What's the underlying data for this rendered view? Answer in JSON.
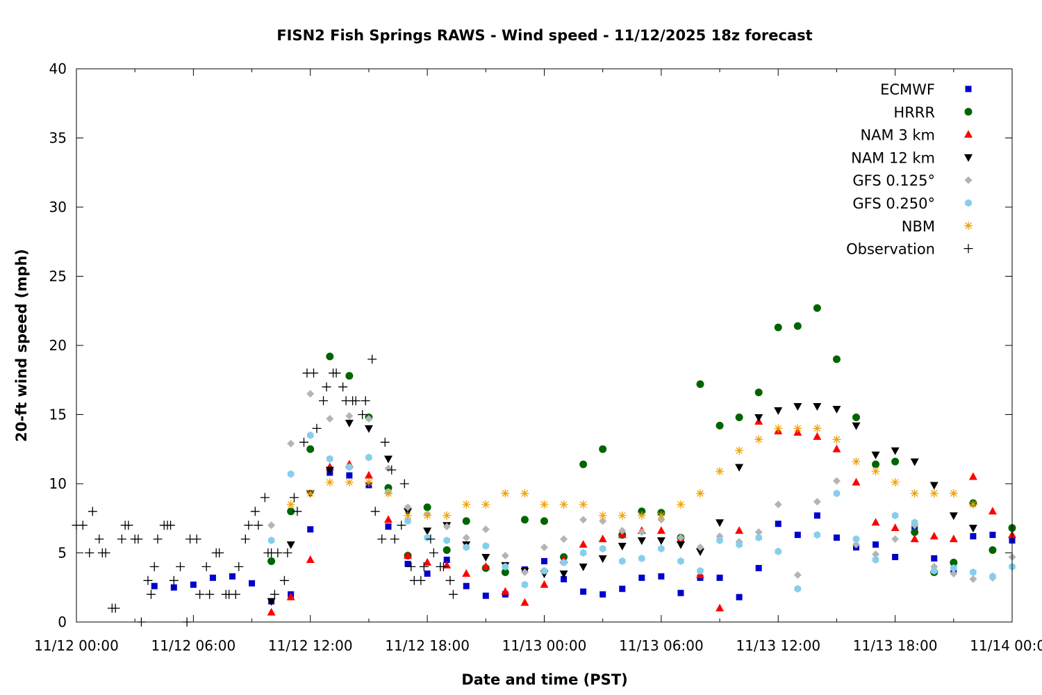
{
  "chart_data": {
    "type": "scatter",
    "title": "FISN2 Fish Springs RAWS - Wind speed - 11/12/2025 18z forecast",
    "xlabel": "Date and time (PST)",
    "ylabel": "20-ft wind speed (mph)",
    "x_unit": "hours since 11/12 00:00",
    "xlim": [
      0,
      48
    ],
    "ylim": [
      0,
      40
    ],
    "x_ticks": [
      {
        "value": 0,
        "label": "11/12 00:00"
      },
      {
        "value": 6,
        "label": "11/12 06:00"
      },
      {
        "value": 12,
        "label": "11/12 12:00"
      },
      {
        "value": 18,
        "label": "11/12 18:00"
      },
      {
        "value": 24,
        "label": "11/13 00:00"
      },
      {
        "value": 30,
        "label": "11/13 06:00"
      },
      {
        "value": 36,
        "label": "11/13 12:00"
      },
      {
        "value": 42,
        "label": "11/13 18:00"
      },
      {
        "value": 48,
        "label": "11/14 00:00"
      }
    ],
    "y_ticks": [
      0,
      5,
      10,
      15,
      20,
      25,
      30,
      35,
      40
    ],
    "legend_position": "top-right",
    "series": [
      {
        "name": "ECMWF",
        "marker": "square",
        "color": "#0000cc",
        "x": [
          4,
          5,
          6,
          7,
          8,
          9,
          10,
          11,
          12,
          13,
          14,
          15,
          16,
          17,
          18,
          19,
          20,
          21,
          22,
          23,
          24,
          25,
          26,
          27,
          28,
          29,
          30,
          31,
          32,
          33,
          34,
          35,
          36,
          37,
          38,
          39,
          40,
          41,
          42,
          43,
          44,
          45,
          46,
          47,
          48
        ],
        "y": [
          2.6,
          2.5,
          2.7,
          3.2,
          3.3,
          2.8,
          1.5,
          2.0,
          6.7,
          10.8,
          10.6,
          9.9,
          6.9,
          4.2,
          3.5,
          4.5,
          2.6,
          1.9,
          2.0,
          3.8,
          4.4,
          3.1,
          2.2,
          2.0,
          2.4,
          3.2,
          3.3,
          2.1,
          3.2,
          3.2,
          1.8,
          3.9,
          7.1,
          6.3,
          7.7,
          6.1,
          5.4,
          5.6,
          4.7,
          6.9,
          4.6,
          3.8,
          6.2,
          6.3,
          5.9
        ]
      },
      {
        "name": "HRRR",
        "marker": "circle",
        "color": "#006400",
        "x": [
          10,
          11,
          12,
          13,
          14,
          15,
          16,
          17,
          18,
          19,
          20,
          21,
          22,
          23,
          24,
          25,
          26,
          27,
          28,
          29,
          30,
          31,
          32,
          33,
          34,
          35,
          36,
          37,
          38,
          39,
          40,
          41,
          42,
          43,
          44,
          45,
          46,
          47,
          48
        ],
        "y": [
          4.4,
          8.0,
          12.5,
          19.2,
          17.8,
          14.8,
          9.7,
          4.8,
          8.3,
          5.2,
          7.3,
          3.9,
          3.6,
          7.4,
          7.3,
          4.7,
          11.4,
          12.5,
          6.3,
          8.0,
          7.9,
          6.1,
          17.2,
          14.2,
          14.8,
          16.6,
          21.3,
          21.4,
          22.7,
          19.0,
          14.8,
          11.4,
          11.6,
          6.5,
          3.6,
          4.3,
          8.6,
          5.2,
          6.8
        ]
      },
      {
        "name": "NAM 3 km",
        "marker": "triangle-up",
        "color": "#ff0000",
        "x": [
          10,
          11,
          12,
          13,
          14,
          15,
          16,
          17,
          18,
          19,
          20,
          21,
          22,
          23,
          24,
          25,
          26,
          27,
          28,
          29,
          30,
          31,
          32,
          33,
          34,
          35,
          36,
          37,
          38,
          39,
          40,
          41,
          42,
          43,
          44,
          45,
          46,
          47,
          48
        ],
        "y": [
          0.7,
          1.8,
          4.5,
          11.2,
          11.4,
          10.6,
          7.4,
          4.8,
          4.3,
          4.1,
          3.5,
          4.0,
          2.2,
          1.4,
          2.7,
          4.5,
          5.6,
          6.0,
          6.3,
          6.6,
          6.6,
          6.0,
          3.4,
          1.0,
          6.6,
          14.5,
          13.8,
          13.7,
          13.4,
          12.5,
          10.1,
          7.2,
          6.8,
          6.0,
          6.2,
          6.0,
          10.5,
          8.0,
          6.3
        ]
      },
      {
        "name": "NAM 12 km",
        "marker": "triangle-down",
        "color": "#000000",
        "x": [
          10,
          11,
          12,
          13,
          14,
          15,
          16,
          17,
          18,
          19,
          20,
          21,
          22,
          23,
          24,
          25,
          26,
          27,
          28,
          29,
          30,
          31,
          32,
          33,
          34,
          35,
          36,
          37,
          38,
          39,
          40,
          41,
          42,
          43,
          44,
          45,
          46,
          47,
          48
        ],
        "y": [
          1.5,
          5.6,
          9.3,
          11.0,
          14.4,
          14.0,
          11.8,
          8.0,
          6.6,
          7.0,
          5.6,
          4.7,
          4.1,
          3.7,
          3.5,
          3.5,
          4.0,
          4.6,
          5.5,
          5.9,
          5.9,
          5.6,
          5.1,
          7.2,
          11.2,
          14.8,
          15.3,
          15.6,
          15.6,
          15.4,
          14.2,
          12.1,
          12.4,
          11.6,
          9.9,
          7.7,
          6.8,
          null,
          null
        ]
      },
      {
        "name": "GFS 0.125°",
        "marker": "diamond",
        "color": "#b4b4b4",
        "x": [
          10,
          11,
          12,
          13,
          14,
          15,
          16,
          17,
          18,
          19,
          20,
          21,
          22,
          23,
          24,
          25,
          26,
          27,
          28,
          29,
          30,
          31,
          32,
          33,
          34,
          35,
          36,
          37,
          38,
          39,
          40,
          41,
          42,
          43,
          44,
          45,
          46,
          47,
          48
        ],
        "y": [
          7.0,
          12.9,
          16.5,
          14.7,
          14.9,
          14.7,
          11.1,
          8.3,
          7.8,
          6.9,
          6.1,
          6.7,
          4.8,
          3.6,
          5.4,
          6.0,
          7.4,
          7.3,
          6.6,
          6.5,
          7.4,
          6.1,
          5.4,
          6.2,
          5.8,
          6.5,
          8.5,
          3.4,
          8.7,
          10.2,
          5.6,
          4.9,
          6.0,
          7.0,
          4.0,
          3.5,
          3.1,
          3.2,
          4.7
        ]
      },
      {
        "name": "GFS 0.250°",
        "marker": "hexagon",
        "color": "#87ceeb",
        "x": [
          10,
          11,
          12,
          13,
          14,
          15,
          16,
          17,
          18,
          19,
          20,
          21,
          22,
          23,
          24,
          25,
          26,
          27,
          28,
          29,
          30,
          31,
          32,
          33,
          34,
          35,
          36,
          37,
          38,
          39,
          40,
          41,
          42,
          43,
          44,
          45,
          46,
          47,
          48
        ],
        "y": [
          5.9,
          10.7,
          13.5,
          11.8,
          11.2,
          11.9,
          9.4,
          7.3,
          6.1,
          5.9,
          5.4,
          5.5,
          4.0,
          2.7,
          3.7,
          4.3,
          5.0,
          5.3,
          4.4,
          4.6,
          5.3,
          4.4,
          3.7,
          5.9,
          5.6,
          6.1,
          5.1,
          2.4,
          6.3,
          9.3,
          6.0,
          4.5,
          7.7,
          7.2,
          3.7,
          3.9,
          3.6,
          3.3,
          4.0
        ]
      },
      {
        "name": "NBM",
        "marker": "asterisk",
        "color": "#f0a000",
        "x": [
          11,
          12,
          13,
          14,
          15,
          16,
          17,
          18,
          19,
          20,
          21,
          22,
          23,
          24,
          25,
          26,
          27,
          28,
          29,
          30,
          31,
          32,
          33,
          34,
          35,
          36,
          37,
          38,
          39,
          40,
          41,
          42,
          43,
          44,
          45,
          46
        ],
        "y": [
          8.5,
          9.3,
          10.1,
          10.1,
          10.1,
          9.3,
          7.7,
          7.7,
          7.7,
          8.5,
          8.5,
          9.3,
          9.3,
          8.5,
          8.5,
          8.5,
          7.7,
          7.7,
          7.7,
          7.7,
          8.5,
          9.3,
          10.9,
          12.4,
          13.2,
          14.0,
          14.0,
          14.0,
          13.2,
          11.6,
          10.9,
          10.1,
          9.3,
          9.3,
          9.3,
          8.5
        ]
      },
      {
        "name": "Observation",
        "marker": "plus",
        "color": "#000000",
        "x": [
          0,
          0.33,
          0.67,
          0.83,
          1.17,
          1.33,
          1.5,
          1.83,
          2.0,
          2.33,
          2.5,
          2.67,
          3.0,
          3.17,
          3.33,
          3.67,
          3.83,
          4.0,
          4.17,
          4.5,
          4.67,
          4.83,
          5.0,
          5.33,
          5.67,
          5.83,
          6.17,
          6.33,
          6.67,
          6.83,
          7.17,
          7.33,
          7.67,
          7.83,
          8.17,
          8.33,
          8.67,
          8.83,
          9.17,
          9.33,
          9.67,
          9.83,
          10.0,
          10.17,
          10.33,
          10.67,
          10.83,
          11.17,
          11.33,
          11.67,
          11.83,
          12.17,
          12.33,
          12.67,
          12.83,
          13.17,
          13.33,
          13.67,
          13.83,
          14.17,
          14.33,
          14.67,
          14.83,
          15.17,
          15.33,
          15.67,
          15.83,
          16.17,
          16.33,
          16.67,
          16.83,
          17.17,
          17.33,
          17.67,
          17.83,
          18.17,
          18.33,
          18.67,
          18.83,
          19.17,
          19.33,
          19.67,
          19.83,
          20.17,
          20.33,
          20.67,
          20.83,
          21.17,
          21.33,
          21.67,
          21.83,
          22.17
        ],
        "y": [
          7,
          7,
          5,
          8,
          6,
          5,
          5,
          1,
          1,
          6,
          7,
          7,
          6,
          6,
          0,
          3,
          2,
          4,
          6,
          7,
          7,
          7,
          3,
          4,
          0,
          6,
          6,
          2,
          4,
          2,
          5,
          5,
          2,
          2,
          2,
          4,
          6,
          7,
          8,
          7,
          9,
          5,
          5,
          2,
          5,
          3,
          5,
          9,
          8,
          13,
          18,
          18,
          14,
          16,
          17,
          18,
          18,
          17,
          16,
          16,
          16,
          15,
          16,
          19,
          8,
          6,
          13,
          11,
          6,
          7,
          10,
          4,
          3,
          3,
          4,
          6,
          5,
          4,
          4,
          3,
          2,
          null,
          null,
          null,
          null,
          null,
          null,
          null,
          null,
          null,
          null,
          null
        ]
      }
    ]
  }
}
